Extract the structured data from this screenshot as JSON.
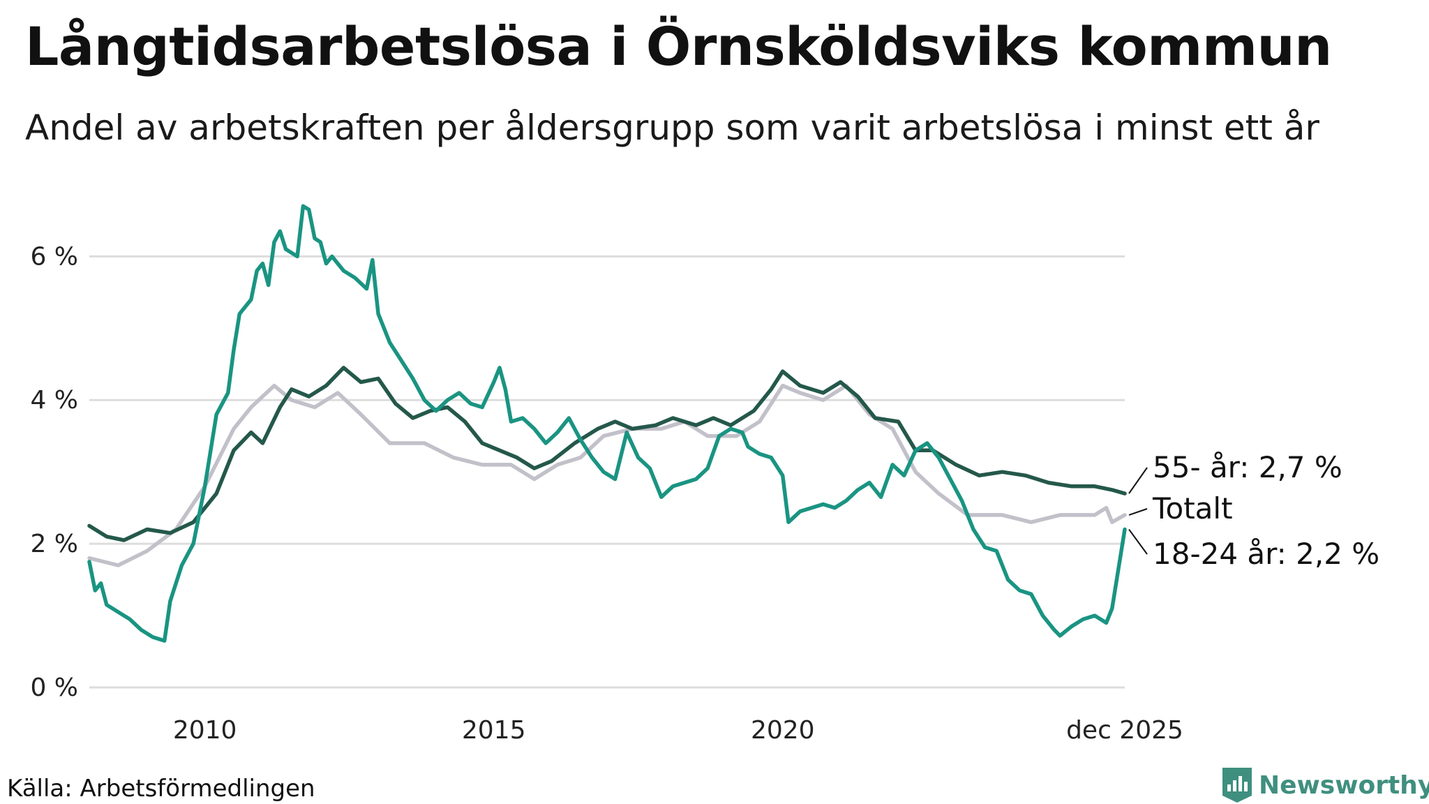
{
  "title": "Långtidsarbetslösa i Örnsköldsviks kommun",
  "subtitle": "Andel av arbetskraften per åldersgrupp som varit arbetslösa i minst ett år",
  "source": "Källa: Arbetsförmedlingen",
  "brand": "Newsworthy",
  "colors": {
    "age_55_plus": "#24584a",
    "total": "#c2c0c9",
    "age_18_24": "#1a9482",
    "grid": "#dddddd",
    "brand": "#3f8f7f"
  },
  "chart_data": {
    "type": "line",
    "title": "Långtidsarbetslösa i Örnsköldsviks kommun",
    "xlabel": "",
    "ylabel": "",
    "x_range": [
      2008.0,
      2025.92
    ],
    "ylim": [
      0,
      6.8
    ],
    "y_ticks": [
      {
        "value": 0,
        "label": "0 %"
      },
      {
        "value": 2,
        "label": "2 %"
      },
      {
        "value": 4,
        "label": "4 %"
      },
      {
        "value": 6,
        "label": "6 %"
      }
    ],
    "x_ticks": [
      {
        "value": 2010,
        "label": "2010"
      },
      {
        "value": 2015,
        "label": "2015"
      },
      {
        "value": 2020,
        "label": "2020"
      },
      {
        "value": 2025.92,
        "label": "dec 2025"
      }
    ],
    "series": [
      {
        "name": "Totalt",
        "label": "Totalt",
        "color": "#c2c0c9",
        "points": [
          [
            2008.0,
            1.8
          ],
          [
            2008.5,
            1.7
          ],
          [
            2009.0,
            1.9
          ],
          [
            2009.5,
            2.2
          ],
          [
            2010.0,
            2.8
          ],
          [
            2010.5,
            3.6
          ],
          [
            2010.8,
            3.9
          ],
          [
            2011.2,
            4.2
          ],
          [
            2011.5,
            4.0
          ],
          [
            2011.9,
            3.9
          ],
          [
            2012.3,
            4.1
          ],
          [
            2012.7,
            3.8
          ],
          [
            2013.2,
            3.4
          ],
          [
            2013.8,
            3.4
          ],
          [
            2014.3,
            3.2
          ],
          [
            2014.8,
            3.1
          ],
          [
            2015.3,
            3.1
          ],
          [
            2015.7,
            2.9
          ],
          [
            2016.1,
            3.1
          ],
          [
            2016.5,
            3.2
          ],
          [
            2016.9,
            3.5
          ],
          [
            2017.4,
            3.6
          ],
          [
            2017.9,
            3.6
          ],
          [
            2018.3,
            3.7
          ],
          [
            2018.7,
            3.5
          ],
          [
            2019.2,
            3.5
          ],
          [
            2019.6,
            3.7
          ],
          [
            2020.0,
            4.2
          ],
          [
            2020.3,
            4.1
          ],
          [
            2020.7,
            4.0
          ],
          [
            2021.1,
            4.2
          ],
          [
            2021.5,
            3.8
          ],
          [
            2021.9,
            3.6
          ],
          [
            2022.3,
            3.0
          ],
          [
            2022.7,
            2.7
          ],
          [
            2023.2,
            2.4
          ],
          [
            2023.8,
            2.4
          ],
          [
            2024.3,
            2.3
          ],
          [
            2024.8,
            2.4
          ],
          [
            2025.4,
            2.4
          ],
          [
            2025.6,
            2.5
          ],
          [
            2025.7,
            2.3
          ],
          [
            2025.92,
            2.4
          ]
        ]
      },
      {
        "name": "55- år",
        "label": "55- år: 2,7 %",
        "color": "#24584a",
        "points": [
          [
            2008.0,
            2.25
          ],
          [
            2008.3,
            2.1
          ],
          [
            2008.6,
            2.05
          ],
          [
            2009.0,
            2.2
          ],
          [
            2009.4,
            2.15
          ],
          [
            2009.8,
            2.3
          ],
          [
            2010.2,
            2.7
          ],
          [
            2010.5,
            3.3
          ],
          [
            2010.8,
            3.55
          ],
          [
            2011.0,
            3.4
          ],
          [
            2011.3,
            3.9
          ],
          [
            2011.5,
            4.15
          ],
          [
            2011.8,
            4.05
          ],
          [
            2012.1,
            4.2
          ],
          [
            2012.4,
            4.45
          ],
          [
            2012.7,
            4.25
          ],
          [
            2013.0,
            4.3
          ],
          [
            2013.3,
            3.95
          ],
          [
            2013.6,
            3.75
          ],
          [
            2013.9,
            3.85
          ],
          [
            2014.2,
            3.9
          ],
          [
            2014.5,
            3.7
          ],
          [
            2014.8,
            3.4
          ],
          [
            2015.1,
            3.3
          ],
          [
            2015.4,
            3.2
          ],
          [
            2015.7,
            3.05
          ],
          [
            2016.0,
            3.15
          ],
          [
            2016.4,
            3.4
          ],
          [
            2016.8,
            3.6
          ],
          [
            2017.1,
            3.7
          ],
          [
            2017.4,
            3.6
          ],
          [
            2017.8,
            3.65
          ],
          [
            2018.1,
            3.75
          ],
          [
            2018.5,
            3.65
          ],
          [
            2018.8,
            3.75
          ],
          [
            2019.1,
            3.65
          ],
          [
            2019.5,
            3.85
          ],
          [
            2019.8,
            4.15
          ],
          [
            2020.0,
            4.4
          ],
          [
            2020.3,
            4.2
          ],
          [
            2020.7,
            4.1
          ],
          [
            2021.0,
            4.25
          ],
          [
            2021.3,
            4.05
          ],
          [
            2021.6,
            3.75
          ],
          [
            2022.0,
            3.7
          ],
          [
            2022.3,
            3.3
          ],
          [
            2022.6,
            3.3
          ],
          [
            2023.0,
            3.1
          ],
          [
            2023.4,
            2.95
          ],
          [
            2023.8,
            3.0
          ],
          [
            2024.2,
            2.95
          ],
          [
            2024.6,
            2.85
          ],
          [
            2025.0,
            2.8
          ],
          [
            2025.4,
            2.8
          ],
          [
            2025.7,
            2.75
          ],
          [
            2025.92,
            2.7
          ]
        ]
      },
      {
        "name": "18-24 år",
        "label": "18-24 år: 2,2 %",
        "color": "#1a9482",
        "points": [
          [
            2008.0,
            1.75
          ],
          [
            2008.1,
            1.35
          ],
          [
            2008.2,
            1.45
          ],
          [
            2008.3,
            1.15
          ],
          [
            2008.5,
            1.05
          ],
          [
            2008.7,
            0.95
          ],
          [
            2008.9,
            0.8
          ],
          [
            2009.1,
            0.7
          ],
          [
            2009.3,
            0.65
          ],
          [
            2009.4,
            1.2
          ],
          [
            2009.6,
            1.7
          ],
          [
            2009.8,
            2.0
          ],
          [
            2010.0,
            2.8
          ],
          [
            2010.2,
            3.8
          ],
          [
            2010.4,
            4.1
          ],
          [
            2010.5,
            4.7
          ],
          [
            2010.6,
            5.2
          ],
          [
            2010.8,
            5.4
          ],
          [
            2010.9,
            5.8
          ],
          [
            2011.0,
            5.9
          ],
          [
            2011.1,
            5.6
          ],
          [
            2011.2,
            6.2
          ],
          [
            2011.3,
            6.35
          ],
          [
            2011.4,
            6.1
          ],
          [
            2011.6,
            6.0
          ],
          [
            2011.7,
            6.7
          ],
          [
            2011.8,
            6.65
          ],
          [
            2011.9,
            6.25
          ],
          [
            2012.0,
            6.2
          ],
          [
            2012.1,
            5.9
          ],
          [
            2012.2,
            6.0
          ],
          [
            2012.4,
            5.8
          ],
          [
            2012.6,
            5.7
          ],
          [
            2012.8,
            5.55
          ],
          [
            2012.9,
            5.95
          ],
          [
            2013.0,
            5.2
          ],
          [
            2013.2,
            4.8
          ],
          [
            2013.4,
            4.55
          ],
          [
            2013.6,
            4.3
          ],
          [
            2013.8,
            4.0
          ],
          [
            2014.0,
            3.85
          ],
          [
            2014.2,
            4.0
          ],
          [
            2014.4,
            4.1
          ],
          [
            2014.6,
            3.95
          ],
          [
            2014.8,
            3.9
          ],
          [
            2015.0,
            4.25
          ],
          [
            2015.1,
            4.45
          ],
          [
            2015.2,
            4.15
          ],
          [
            2015.3,
            3.7
          ],
          [
            2015.5,
            3.75
          ],
          [
            2015.7,
            3.6
          ],
          [
            2015.9,
            3.4
          ],
          [
            2016.1,
            3.55
          ],
          [
            2016.3,
            3.75
          ],
          [
            2016.5,
            3.45
          ],
          [
            2016.7,
            3.2
          ],
          [
            2016.9,
            3.0
          ],
          [
            2017.1,
            2.9
          ],
          [
            2017.3,
            3.55
          ],
          [
            2017.5,
            3.2
          ],
          [
            2017.7,
            3.05
          ],
          [
            2017.9,
            2.65
          ],
          [
            2018.1,
            2.8
          ],
          [
            2018.3,
            2.85
          ],
          [
            2018.5,
            2.9
          ],
          [
            2018.7,
            3.05
          ],
          [
            2018.9,
            3.5
          ],
          [
            2019.1,
            3.6
          ],
          [
            2019.3,
            3.55
          ],
          [
            2019.4,
            3.35
          ],
          [
            2019.6,
            3.25
          ],
          [
            2019.8,
            3.2
          ],
          [
            2020.0,
            2.95
          ],
          [
            2020.1,
            2.3
          ],
          [
            2020.3,
            2.45
          ],
          [
            2020.5,
            2.5
          ],
          [
            2020.7,
            2.55
          ],
          [
            2020.9,
            2.5
          ],
          [
            2021.1,
            2.6
          ],
          [
            2021.3,
            2.75
          ],
          [
            2021.5,
            2.85
          ],
          [
            2021.7,
            2.65
          ],
          [
            2021.9,
            3.1
          ],
          [
            2022.1,
            2.95
          ],
          [
            2022.3,
            3.3
          ],
          [
            2022.5,
            3.4
          ],
          [
            2022.7,
            3.2
          ],
          [
            2022.9,
            2.9
          ],
          [
            2023.1,
            2.6
          ],
          [
            2023.3,
            2.2
          ],
          [
            2023.5,
            1.95
          ],
          [
            2023.7,
            1.9
          ],
          [
            2023.9,
            1.5
          ],
          [
            2024.1,
            1.35
          ],
          [
            2024.3,
            1.3
          ],
          [
            2024.5,
            1.0
          ],
          [
            2024.7,
            0.8
          ],
          [
            2024.8,
            0.72
          ],
          [
            2025.0,
            0.85
          ],
          [
            2025.2,
            0.95
          ],
          [
            2025.4,
            1.0
          ],
          [
            2025.6,
            0.9
          ],
          [
            2025.7,
            1.1
          ],
          [
            2025.92,
            2.2
          ]
        ]
      }
    ]
  }
}
